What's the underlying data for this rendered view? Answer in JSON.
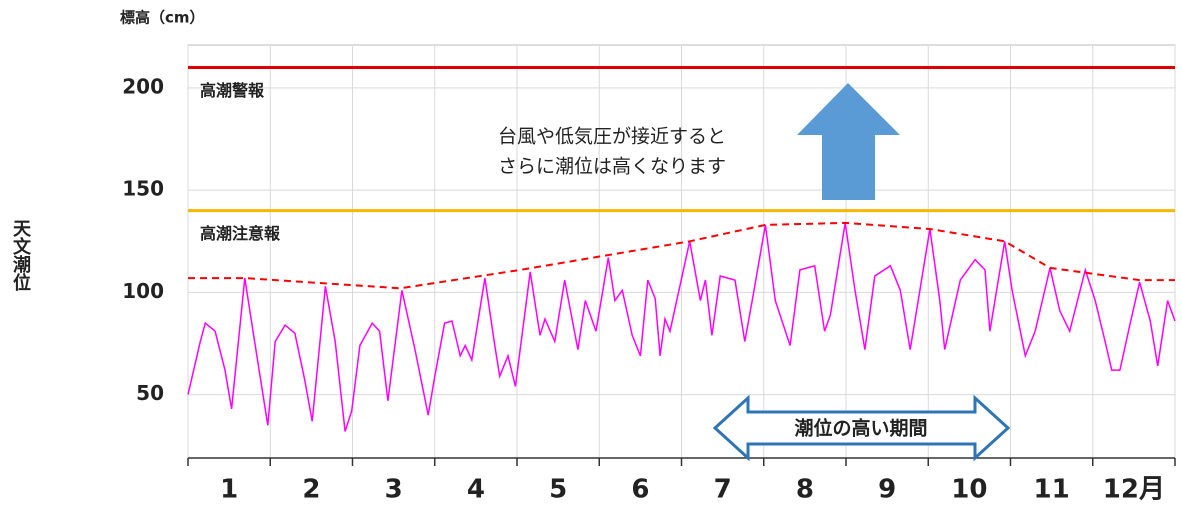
{
  "chart_data": {
    "type": "line",
    "y_unit": "標高（cm）",
    "y_label": "天文潮位",
    "categories": [
      "1",
      "2",
      "3",
      "4",
      "5",
      "6",
      "7",
      "8",
      "9",
      "10",
      "11",
      "12月"
    ],
    "xlim": [
      0,
      12
    ],
    "xticks": [
      0,
      1,
      2,
      3,
      4,
      5,
      6,
      7,
      8,
      9,
      10,
      11,
      12
    ],
    "ylim": [
      19,
      221
    ],
    "yticks": [
      50,
      100,
      150,
      200
    ],
    "grid": true,
    "series": [
      {
        "color": "#ff00ff",
        "dashed": false,
        "x": [
          0,
          0.15,
          0.21,
          0.33,
          0.45,
          0.53,
          0.69,
          0.81,
          0.97,
          1.06,
          1.18,
          1.3,
          1.42,
          1.51,
          1.67,
          1.79,
          1.91,
          1.99,
          2.09,
          2.24,
          2.33,
          2.43,
          2.6,
          2.76,
          2.92,
          3.0,
          3.12,
          3.21,
          3.31,
          3.37,
          3.45,
          3.61,
          3.73,
          3.79,
          3.89,
          3.98,
          4.16,
          4.28,
          4.34,
          4.46,
          4.58,
          4.74,
          4.83,
          4.96,
          5.11,
          5.19,
          5.28,
          5.4,
          5.5,
          5.59,
          5.68,
          5.74,
          5.8,
          5.86,
          6.1,
          6.23,
          6.29,
          6.37,
          6.47,
          6.65,
          6.77,
          6.86,
          7.02,
          7.14,
          7.32,
          7.44,
          7.62,
          7.74,
          7.81,
          7.99,
          8.11,
          8.23,
          8.35,
          8.54,
          8.66,
          8.78,
          9.02,
          9.14,
          9.2,
          9.39,
          9.57,
          9.69,
          9.75,
          9.93,
          10.02,
          10.18,
          10.3,
          10.48,
          10.6,
          10.72,
          10.91,
          11.03,
          11.15,
          11.23,
          11.33,
          11.45,
          11.57,
          11.7,
          11.79,
          11.91,
          12
        ],
        "values": [
          50,
          76,
          85,
          81,
          62,
          43,
          107,
          76,
          35,
          76,
          84,
          80,
          57,
          37,
          103,
          76,
          32,
          42,
          74,
          85,
          81,
          47,
          101,
          72,
          40,
          59,
          85,
          86,
          69,
          74,
          67,
          107,
          74,
          59,
          69,
          54,
          110,
          79,
          87,
          76,
          106,
          72,
          96,
          81,
          117,
          96,
          101,
          79,
          69,
          106,
          97,
          69,
          87,
          81,
          125,
          96,
          106,
          79,
          108,
          106,
          76,
          96,
          133,
          96,
          74,
          111,
          113,
          81,
          89,
          134,
          101,
          72,
          108,
          113,
          101,
          72,
          131,
          96,
          72,
          106,
          116,
          111,
          81,
          125,
          101,
          69,
          81,
          112,
          91,
          81,
          111,
          96,
          76,
          62,
          62,
          84,
          105,
          86,
          64,
          96,
          86
        ]
      },
      {
        "color": "#ff0000",
        "dashed": true,
        "x": [
          0,
          0.69,
          2.58,
          4.04,
          6.1,
          7.02,
          7.99,
          9.02,
          9.93,
          10.48,
          11.57,
          12
        ],
        "values": [
          107,
          107,
          102,
          111,
          125,
          133,
          134,
          131,
          125,
          112,
          106,
          106
        ]
      }
    ],
    "thresholds": [
      {
        "value": 210,
        "label": "高潮警報",
        "color": "#e00000"
      },
      {
        "value": 140,
        "label": "高潮注意報",
        "color": "#f5b800"
      }
    ],
    "annotation": [
      "台風や低気圧が接近すると",
      "さらに潮位は高くなります"
    ],
    "period_label": "潮位の高い期間"
  }
}
